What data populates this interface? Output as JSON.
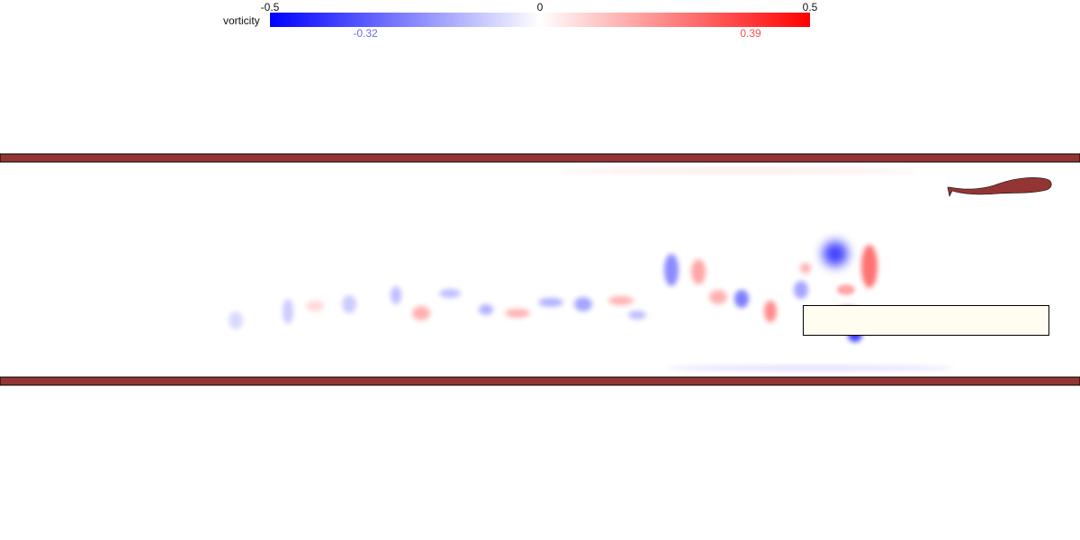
{
  "colorbar": {
    "variable": "vorticity",
    "min_label": "-0.5",
    "mid_label": "0",
    "max_label": "0.5",
    "range": [
      -0.5,
      0.5
    ],
    "observed_min": "-0.32",
    "observed_max": "0.39",
    "colors": {
      "negative": "#0000ff",
      "zero": "#ffffff",
      "positive": "#ff0000"
    },
    "observed_min_color": "#6a6ae6",
    "observed_max_color": "#f05050"
  },
  "scene": {
    "wall_color": "#943535",
    "fish_color": "#943535",
    "obstacle_fill": "#fffcf0",
    "obstacle_stroke": "#000000"
  }
}
